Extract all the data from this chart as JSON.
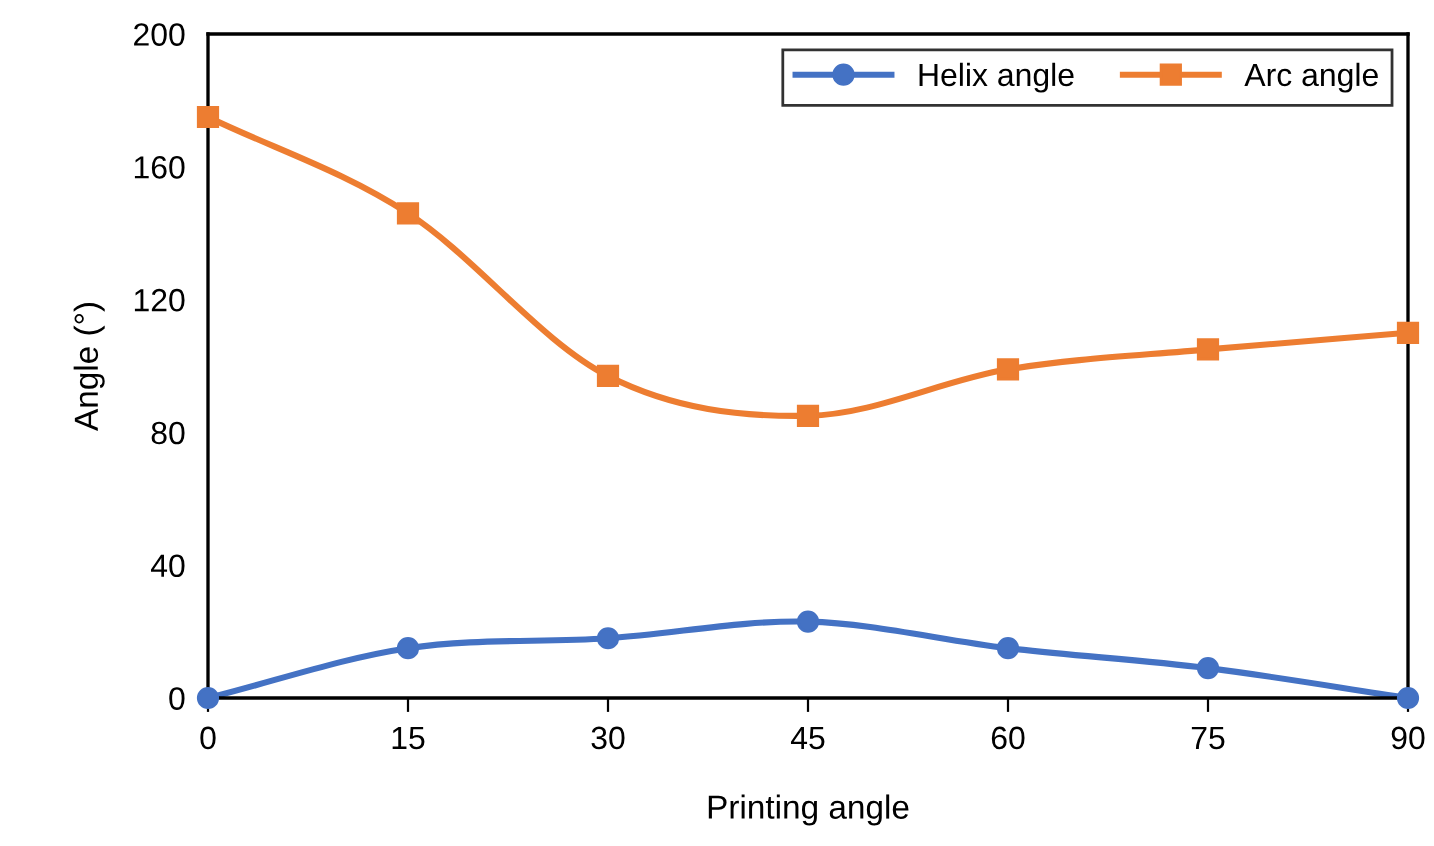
{
  "chart_data": {
    "type": "line",
    "xlabel": "Printing angle",
    "ylabel": "Angle (°)",
    "x": [
      0,
      15,
      30,
      45,
      60,
      75,
      90
    ],
    "series": [
      {
        "name": "Helix angle",
        "color": "#4472c4",
        "marker": "circle",
        "values": [
          0,
          15,
          18,
          23,
          15,
          9,
          0
        ]
      },
      {
        "name": "Arc angle",
        "color": "#ed7d31",
        "marker": "square",
        "values": [
          175,
          146,
          97,
          85,
          99,
          105,
          110
        ]
      }
    ],
    "xlim": [
      0,
      90
    ],
    "xticks": [
      0,
      15,
      30,
      45,
      60,
      75,
      90
    ],
    "ylim": [
      0,
      200
    ],
    "yticks": [
      0,
      40,
      80,
      120,
      160,
      200
    ],
    "grid": false,
    "legend": "top right",
    "line_style": "solid"
  }
}
